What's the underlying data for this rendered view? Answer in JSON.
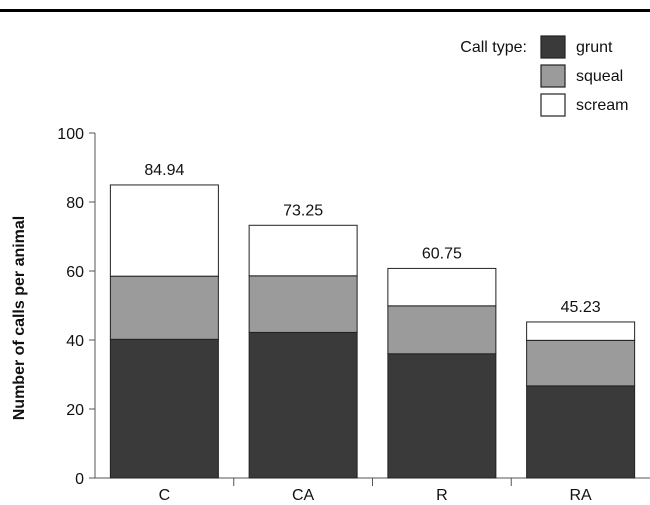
{
  "chart_data": {
    "type": "bar",
    "stacked": true,
    "categories": [
      "C",
      "CA",
      "R",
      "RA"
    ],
    "series": [
      {
        "name": "grunt",
        "values": [
          40.2,
          42.2,
          36.0,
          26.7
        ],
        "color": "#3a3a3a"
      },
      {
        "name": "squeal",
        "values": [
          18.3,
          16.4,
          13.9,
          13.2
        ],
        "color": "#9b9b9b"
      },
      {
        "name": "scream",
        "values": [
          26.44,
          14.65,
          10.85,
          5.33
        ],
        "color": "#ffffff"
      }
    ],
    "totals": [
      "84.94",
      "73.25",
      "60.75",
      "45.23"
    ],
    "ylabel": "Number of calls per animal",
    "xlabel": "",
    "ylim": [
      0,
      100
    ],
    "yticks": [
      0,
      20,
      40,
      60,
      80,
      100
    ],
    "legend_title": "Call type:",
    "legend_position": "top-right"
  }
}
